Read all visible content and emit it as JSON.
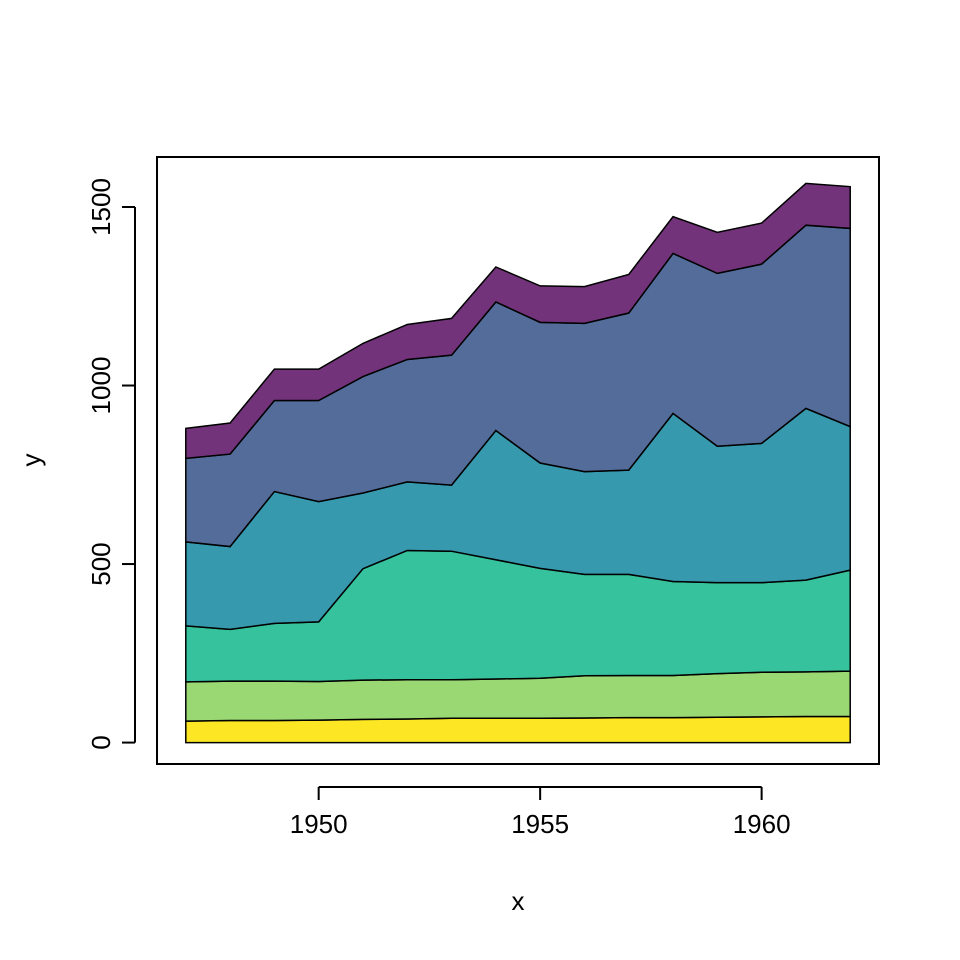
{
  "chart_data": {
    "type": "area",
    "stacked": true,
    "xlabel": "x",
    "ylabel": "y",
    "xlim": [
      1946.35,
      1962.65
    ],
    "ylim": [
      -60,
      1640
    ],
    "xticks": [
      1950,
      1955,
      1960
    ],
    "yticks": [
      0,
      500,
      1000,
      1500
    ],
    "x": [
      1947,
      1948,
      1949,
      1950,
      1951,
      1952,
      1953,
      1954,
      1955,
      1956,
      1957,
      1958,
      1959,
      1960,
      1961,
      1962
    ],
    "series": [
      {
        "color": "#FDE725",
        "values": [
          60,
          62,
          62,
          63,
          65,
          66,
          68,
          68,
          68,
          69,
          70,
          70,
          71,
          72,
          73,
          73
        ]
      },
      {
        "color": "#9AD874",
        "values": [
          110,
          110,
          110,
          108,
          110,
          110,
          108,
          110,
          112,
          118,
          118,
          118,
          122,
          125,
          125,
          127
        ]
      },
      {
        "color": "#35C29C",
        "values": [
          157,
          145,
          162,
          167,
          312,
          362,
          360,
          334,
          308,
          284,
          283,
          263,
          255,
          251,
          257,
          283
        ]
      },
      {
        "color": "#3699AE",
        "values": [
          235,
          232,
          369,
          337,
          212,
          192,
          185,
          362,
          295,
          288,
          292,
          471,
          382,
          390,
          481,
          402
        ]
      },
      {
        "color": "#536C9A",
        "values": [
          234,
          259,
          255,
          283,
          326,
          343,
          364,
          360,
          394,
          415,
          440,
          448,
          484,
          502,
          513,
          555
        ]
      },
      {
        "color": "#72337A",
        "values": [
          84,
          87,
          88,
          88,
          93,
          98,
          103,
          98,
          102,
          103,
          108,
          103,
          115,
          115,
          117,
          117
        ]
      }
    ],
    "grid": false,
    "legend": "none"
  }
}
